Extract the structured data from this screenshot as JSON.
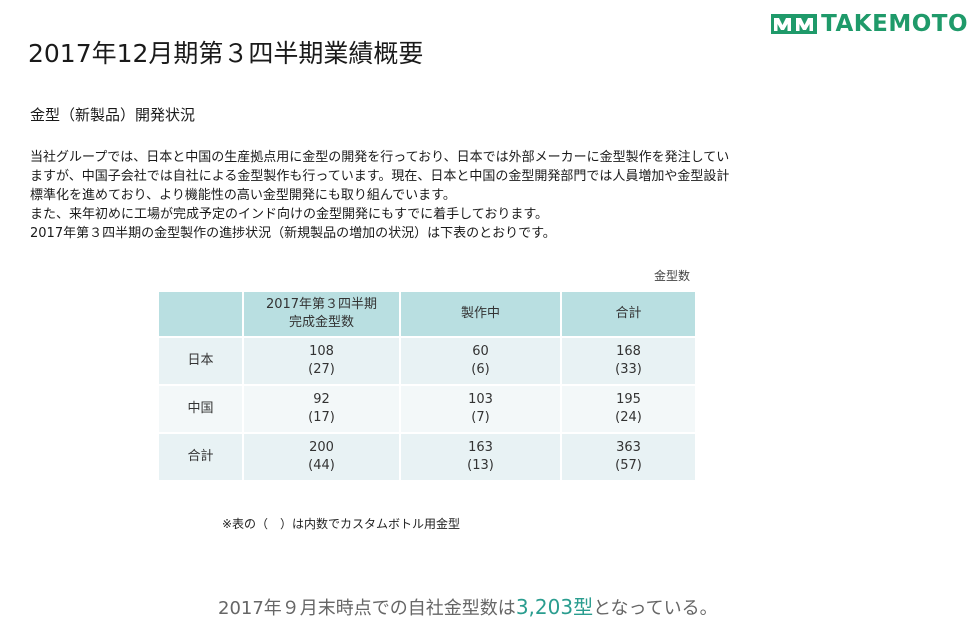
{
  "brand": {
    "logo_text": "TAKEMOTO",
    "logo_color": "#1f9a6a"
  },
  "header": {
    "title": "2017年12月期第３四半期業績概要"
  },
  "section": {
    "heading": "金型（新製品）開発状況",
    "paragraphs": [
      "当社グループでは、日本と中国の生産拠点用に金型の開発を行っており、日本では外部メーカーに金型製作を発注してい",
      "ますが、中国子会社では自社による金型製作も行っています。現在、日本と中国の金型開発部門では人員増加や金型設計",
      "標準化を進めており、より機能性の高い金型開発にも取り組んでいます。",
      "また、来年初めに工場が完成予定のインド向けの金型開発にもすでに着手しております。",
      "2017年第３四半期の金型製作の進捗状況（新規製品の増加の状況）は下表のとおりです。"
    ]
  },
  "table": {
    "unit": "金型数",
    "header_fill": "#b9dfe1",
    "columns": [
      "",
      [
        "2017年第３四半期",
        "完成金型数"
      ],
      "製作中",
      "合計"
    ],
    "rows": [
      {
        "label": "日本",
        "cells": [
          [
            "108",
            "(27)"
          ],
          [
            "60",
            "(6)"
          ],
          [
            "168",
            "(33)"
          ]
        ]
      },
      {
        "label": "中国",
        "cells": [
          [
            "92",
            "(17)"
          ],
          [
            "103",
            "(7)"
          ],
          [
            "195",
            "(24)"
          ]
        ]
      },
      {
        "label": "合計",
        "cells": [
          [
            "200",
            "(44)"
          ],
          [
            "163",
            "(13)"
          ],
          [
            "363",
            "(57)"
          ]
        ]
      }
    ]
  },
  "footnote": "※表の（　）は内数でカスタムボトル用金型",
  "summary": {
    "prefix": "2017年９月末時点での自社金型数は",
    "highlight": "3,203型",
    "suffix": "となっている。",
    "highlight_color": "#2a9d8f"
  }
}
